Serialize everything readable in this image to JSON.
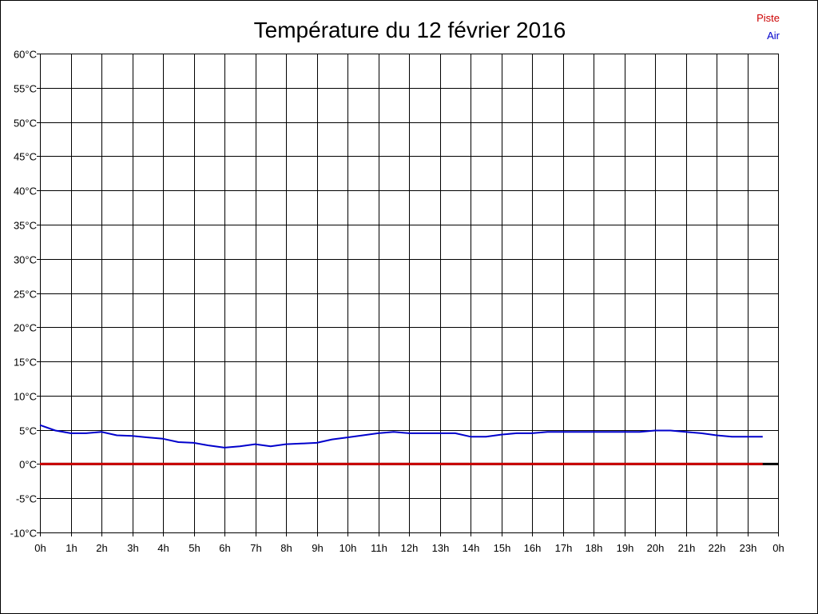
{
  "chart_data": {
    "type": "line",
    "title": "Température du 12 février 2016",
    "xlabel": "",
    "ylabel": "",
    "x_tick_labels": [
      "0h",
      "1h",
      "2h",
      "3h",
      "4h",
      "5h",
      "6h",
      "7h",
      "8h",
      "9h",
      "10h",
      "11h",
      "12h",
      "13h",
      "14h",
      "15h",
      "16h",
      "17h",
      "18h",
      "19h",
      "20h",
      "21h",
      "22h",
      "23h",
      "0h"
    ],
    "y_tick_labels": [
      "60°C",
      "55°C",
      "50°C",
      "45°C",
      "40°C",
      "35°C",
      "30°C",
      "25°C",
      "20°C",
      "15°C",
      "10°C",
      "5°C",
      "0°C",
      "-5°C",
      "-10°C"
    ],
    "xlim": [
      0,
      24
    ],
    "ylim": [
      -10,
      60
    ],
    "grid": true,
    "legend_position": "top-right",
    "series": [
      {
        "name": "Piste",
        "color": "#cc0000",
        "x": [
          0,
          1,
          2,
          3,
          4,
          5,
          6,
          7,
          8,
          9,
          10,
          11,
          12,
          13,
          14,
          15,
          16,
          17,
          18,
          19,
          20,
          21,
          22,
          23,
          23.5
        ],
        "y": [
          0,
          0,
          0,
          0,
          0,
          0,
          0,
          0,
          0,
          0,
          0,
          0,
          0,
          0,
          0,
          0,
          0,
          0,
          0,
          0,
          0,
          0,
          0,
          0,
          0
        ]
      },
      {
        "name": "Air",
        "color": "#0000cc",
        "x": [
          0,
          0.5,
          1,
          1.5,
          2,
          2.5,
          3,
          3.5,
          4,
          4.5,
          5,
          5.5,
          6,
          6.5,
          7,
          7.5,
          8,
          8.5,
          9,
          9.5,
          10,
          10.5,
          11,
          11.5,
          12,
          12.5,
          13,
          13.5,
          14,
          14.5,
          15,
          15.5,
          16,
          16.5,
          17,
          17.5,
          18,
          18.5,
          19,
          19.5,
          20,
          20.5,
          21,
          21.5,
          22,
          22.5,
          23,
          23.5
        ],
        "y": [
          5.7,
          4.9,
          4.5,
          4.5,
          4.7,
          4.2,
          4.1,
          3.9,
          3.7,
          3.2,
          3.1,
          2.7,
          2.4,
          2.6,
          2.9,
          2.6,
          2.9,
          3.0,
          3.1,
          3.6,
          3.9,
          4.2,
          4.5,
          4.7,
          4.5,
          4.5,
          4.5,
          4.5,
          4.0,
          4.0,
          4.3,
          4.5,
          4.5,
          4.7,
          4.7,
          4.7,
          4.7,
          4.7,
          4.7,
          4.7,
          4.9,
          4.9,
          4.7,
          4.5,
          4.2,
          4.0,
          4.0,
          4.0
        ]
      }
    ]
  }
}
